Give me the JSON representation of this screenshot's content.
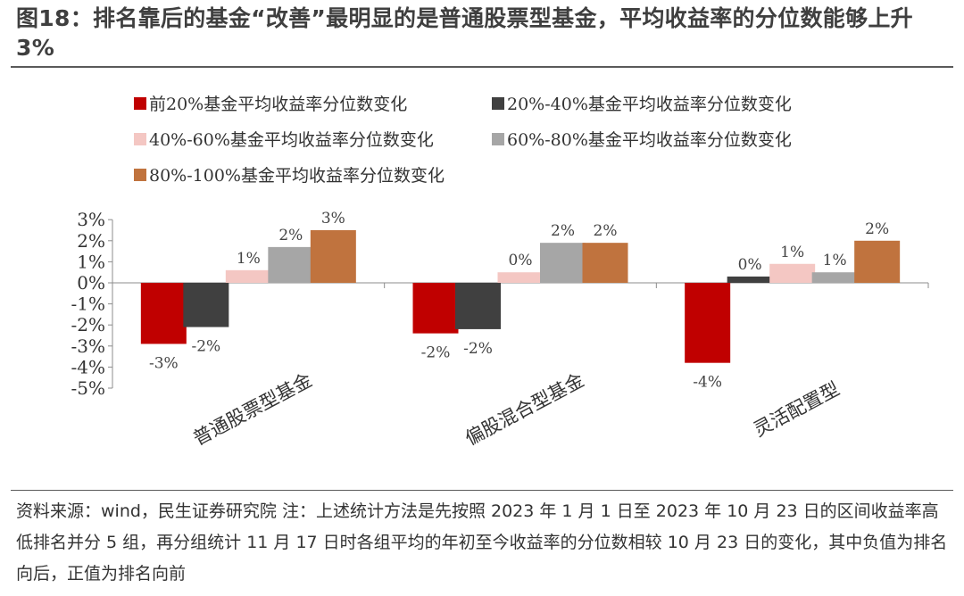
{
  "title": "图18：排名靠后的基金“改善”最明显的是普通股票型基金，平均收益率的分位数能够上升 3%",
  "footnote": "资料来源：wind，民生证券研究院 注：上述统计方法是先按照 2023 年 1 月 1 日至 2023 年 10 月 23 日的区间收益率高低排名并分 5 组，再分组统计 11 月 17 日时各组平均的年初至今收益率的分位数相较 10 月 23 日的变化，其中负值为排名向后，正值为排名向前",
  "chart_data": {
    "type": "bar",
    "categories": [
      "普通股票型基金",
      "偏股混合型基金",
      "灵活配置型"
    ],
    "ylim": [
      -0.05,
      0.03
    ],
    "yticks": [
      0.03,
      0.02,
      0.01,
      0.0,
      -0.01,
      -0.02,
      -0.03,
      -0.04,
      -0.05
    ],
    "ytick_labels": [
      "3%",
      "2%",
      "1%",
      "0%",
      "-1%",
      "-2%",
      "-3%",
      "-4%",
      "-5%"
    ],
    "legend_position": "top",
    "grid": false,
    "series": [
      {
        "name": "前20%基金平均收益率分位数变化",
        "color": "#c00000",
        "values": [
          -0.029,
          -0.024,
          -0.038
        ],
        "labels": [
          "-3%",
          "-2%",
          "-4%"
        ]
      },
      {
        "name": "20%-40%基金平均收益率分位数变化",
        "color": "#404040",
        "values": [
          -0.021,
          -0.022,
          0.003
        ],
        "labels": [
          "-2%",
          "-2%",
          "0%"
        ]
      },
      {
        "name": "40%-60%基金平均收益率分位数变化",
        "color": "#f4c7c3",
        "values": [
          0.006,
          0.005,
          0.009
        ],
        "labels": [
          "1%",
          "0%",
          "1%"
        ]
      },
      {
        "name": "60%-80%基金平均收益率分位数变化",
        "color": "#a6a6a6",
        "values": [
          0.017,
          0.019,
          0.005
        ],
        "labels": [
          "2%",
          "2%",
          "1%"
        ]
      },
      {
        "name": "80%-100%基金平均收益率分位数变化",
        "color": "#c0733e",
        "values": [
          0.025,
          0.019,
          0.02
        ],
        "labels": [
          "3%",
          "2%",
          "2%"
        ]
      }
    ]
  }
}
